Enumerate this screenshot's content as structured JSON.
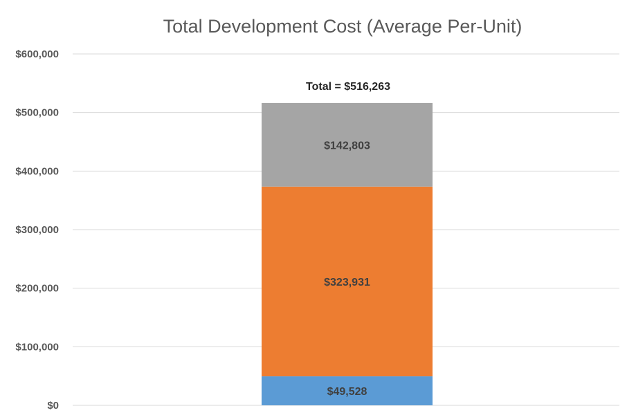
{
  "chart_data": {
    "type": "bar",
    "stacked": true,
    "title": "Total Development Cost (Average Per-Unit)",
    "xlabel": "",
    "ylabel": "",
    "categories": [
      ""
    ],
    "ylim": [
      0,
      600000
    ],
    "yticks": [
      {
        "value": 0,
        "label": "$0"
      },
      {
        "value": 100000,
        "label": "$100,000"
      },
      {
        "value": 200000,
        "label": "$200,000"
      },
      {
        "value": 300000,
        "label": "$300,000"
      },
      {
        "value": 400000,
        "label": "$400,000"
      },
      {
        "value": 500000,
        "label": "$500,000"
      },
      {
        "value": 600000,
        "label": "$600,000"
      }
    ],
    "grid": true,
    "series": [
      {
        "name": "",
        "values": [
          49528
        ],
        "label": "$49,528",
        "color": "#5b9bd5"
      },
      {
        "name": "",
        "values": [
          323931
        ],
        "label": "$323,931",
        "color": "#ed7d31"
      },
      {
        "name": "",
        "values": [
          142803
        ],
        "label": "$142,803",
        "color": "#a5a5a5"
      }
    ],
    "total": {
      "value": 516263,
      "label": "Total = $516,263"
    }
  }
}
